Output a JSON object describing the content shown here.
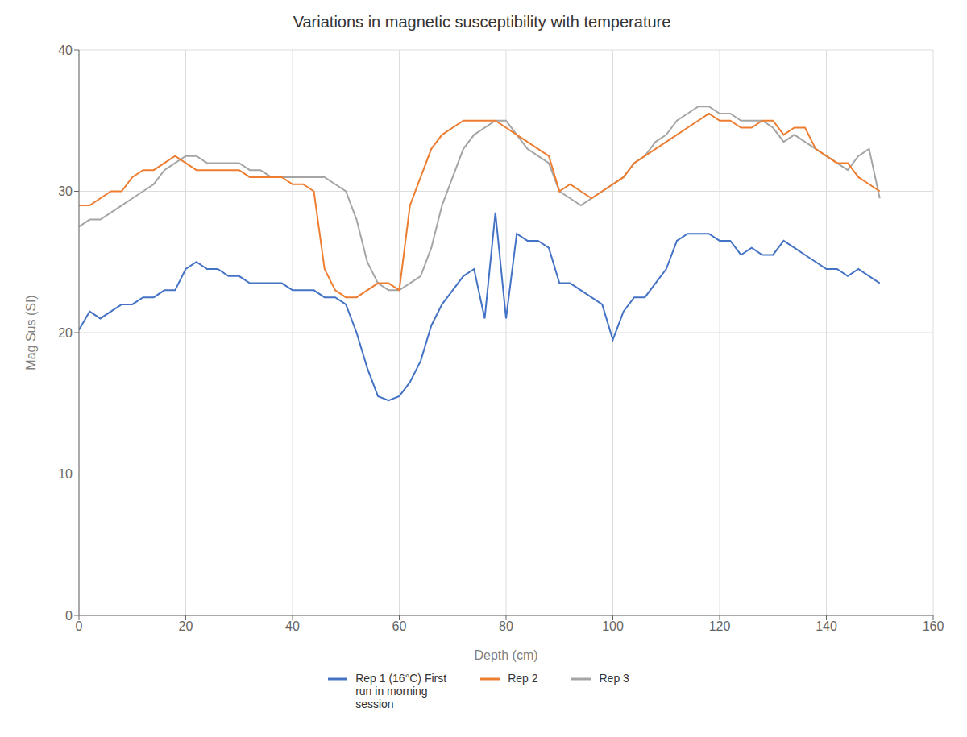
{
  "chart_data": {
    "type": "line",
    "title": "Variations in magnetic susceptibility with temperature",
    "xlabel": "Depth (cm)",
    "ylabel": "Mag Sus (SI)",
    "x": [
      0,
      2,
      4,
      6,
      8,
      10,
      12,
      14,
      16,
      18,
      20,
      22,
      24,
      26,
      28,
      30,
      32,
      34,
      36,
      38,
      40,
      42,
      44,
      46,
      48,
      50,
      52,
      54,
      56,
      58,
      60,
      62,
      64,
      66,
      68,
      70,
      72,
      74,
      76,
      78,
      80,
      82,
      84,
      86,
      88,
      90,
      92,
      94,
      96,
      98,
      100,
      102,
      104,
      106,
      108,
      110,
      112,
      114,
      116,
      118,
      120,
      122,
      124,
      126,
      128,
      130,
      132,
      134,
      136,
      138,
      140,
      142,
      144,
      146,
      148,
      150
    ],
    "series": [
      {
        "name": "Rep 1 (16°C) First\nrun in morning\nsession",
        "color": "#4472c4",
        "values": [
          20.2,
          21.5,
          21.0,
          21.5,
          22.0,
          22.0,
          22.5,
          22.5,
          23.0,
          23.0,
          24.5,
          25.0,
          24.5,
          24.5,
          24.0,
          24.0,
          23.5,
          23.5,
          23.5,
          23.5,
          23.0,
          23.0,
          23.0,
          22.5,
          22.5,
          22.0,
          20.0,
          17.5,
          15.5,
          15.2,
          15.5,
          16.5,
          18.0,
          20.5,
          22.0,
          23.0,
          24.0,
          24.5,
          21.0,
          28.5,
          21.0,
          27.0,
          26.5,
          26.5,
          26.0,
          23.5,
          23.5,
          23.0,
          22.5,
          22.0,
          19.5,
          21.5,
          22.5,
          22.5,
          23.5,
          24.5,
          26.5,
          27.0,
          27.0,
          27.0,
          26.5,
          26.5,
          25.5,
          26.0,
          25.5,
          25.5,
          26.5,
          26.0,
          25.5,
          25.0,
          24.5,
          24.5,
          24.0,
          24.5,
          24.0,
          23.5
        ]
      },
      {
        "name": "Rep 2",
        "color": "#ed7d31",
        "values": [
          29.0,
          29.0,
          29.5,
          30.0,
          30.0,
          31.0,
          31.5,
          31.5,
          32.0,
          32.5,
          32.0,
          31.5,
          31.5,
          31.5,
          31.5,
          31.5,
          31.0,
          31.0,
          31.0,
          31.0,
          30.5,
          30.5,
          30.0,
          24.5,
          23.0,
          22.5,
          22.5,
          23.0,
          23.5,
          23.5,
          23.0,
          29.0,
          31.0,
          33.0,
          34.0,
          34.5,
          35.0,
          35.0,
          35.0,
          35.0,
          34.5,
          34.0,
          33.5,
          33.0,
          32.5,
          30.0,
          30.5,
          30.0,
          29.5,
          30.0,
          30.5,
          31.0,
          32.0,
          32.5,
          33.0,
          33.5,
          34.0,
          34.5,
          35.0,
          35.5,
          35.0,
          35.0,
          34.5,
          34.5,
          35.0,
          35.0,
          34.0,
          34.5,
          34.5,
          33.0,
          32.5,
          32.0,
          32.0,
          31.0,
          30.5,
          30.0
        ]
      },
      {
        "name": "Rep 3",
        "color": "#a5a5a5",
        "values": [
          27.5,
          28.0,
          28.0,
          28.5,
          29.0,
          29.5,
          30.0,
          30.5,
          31.5,
          32.0,
          32.5,
          32.5,
          32.0,
          32.0,
          32.0,
          32.0,
          31.5,
          31.5,
          31.0,
          31.0,
          31.0,
          31.0,
          31.0,
          31.0,
          30.5,
          30.0,
          28.0,
          25.0,
          23.5,
          23.0,
          23.0,
          23.5,
          24.0,
          26.0,
          29.0,
          31.0,
          33.0,
          34.0,
          34.5,
          35.0,
          35.0,
          34.0,
          33.0,
          32.5,
          32.0,
          30.0,
          29.5,
          29.0,
          29.5,
          30.0,
          30.5,
          31.0,
          32.0,
          32.5,
          33.5,
          34.0,
          35.0,
          35.5,
          36.0,
          36.0,
          35.5,
          35.5,
          35.0,
          35.0,
          35.0,
          34.5,
          33.5,
          34.0,
          33.5,
          33.0,
          32.5,
          32.0,
          31.5,
          32.5,
          33.0,
          29.5
        ]
      }
    ],
    "xlim": [
      0,
      160
    ],
    "ylim": [
      0,
      40
    ],
    "xticks": [
      0,
      20,
      40,
      60,
      80,
      100,
      120,
      140,
      160
    ],
    "yticks": [
      0,
      10,
      20,
      30,
      40
    ],
    "grid": true,
    "legend": "bottom"
  }
}
